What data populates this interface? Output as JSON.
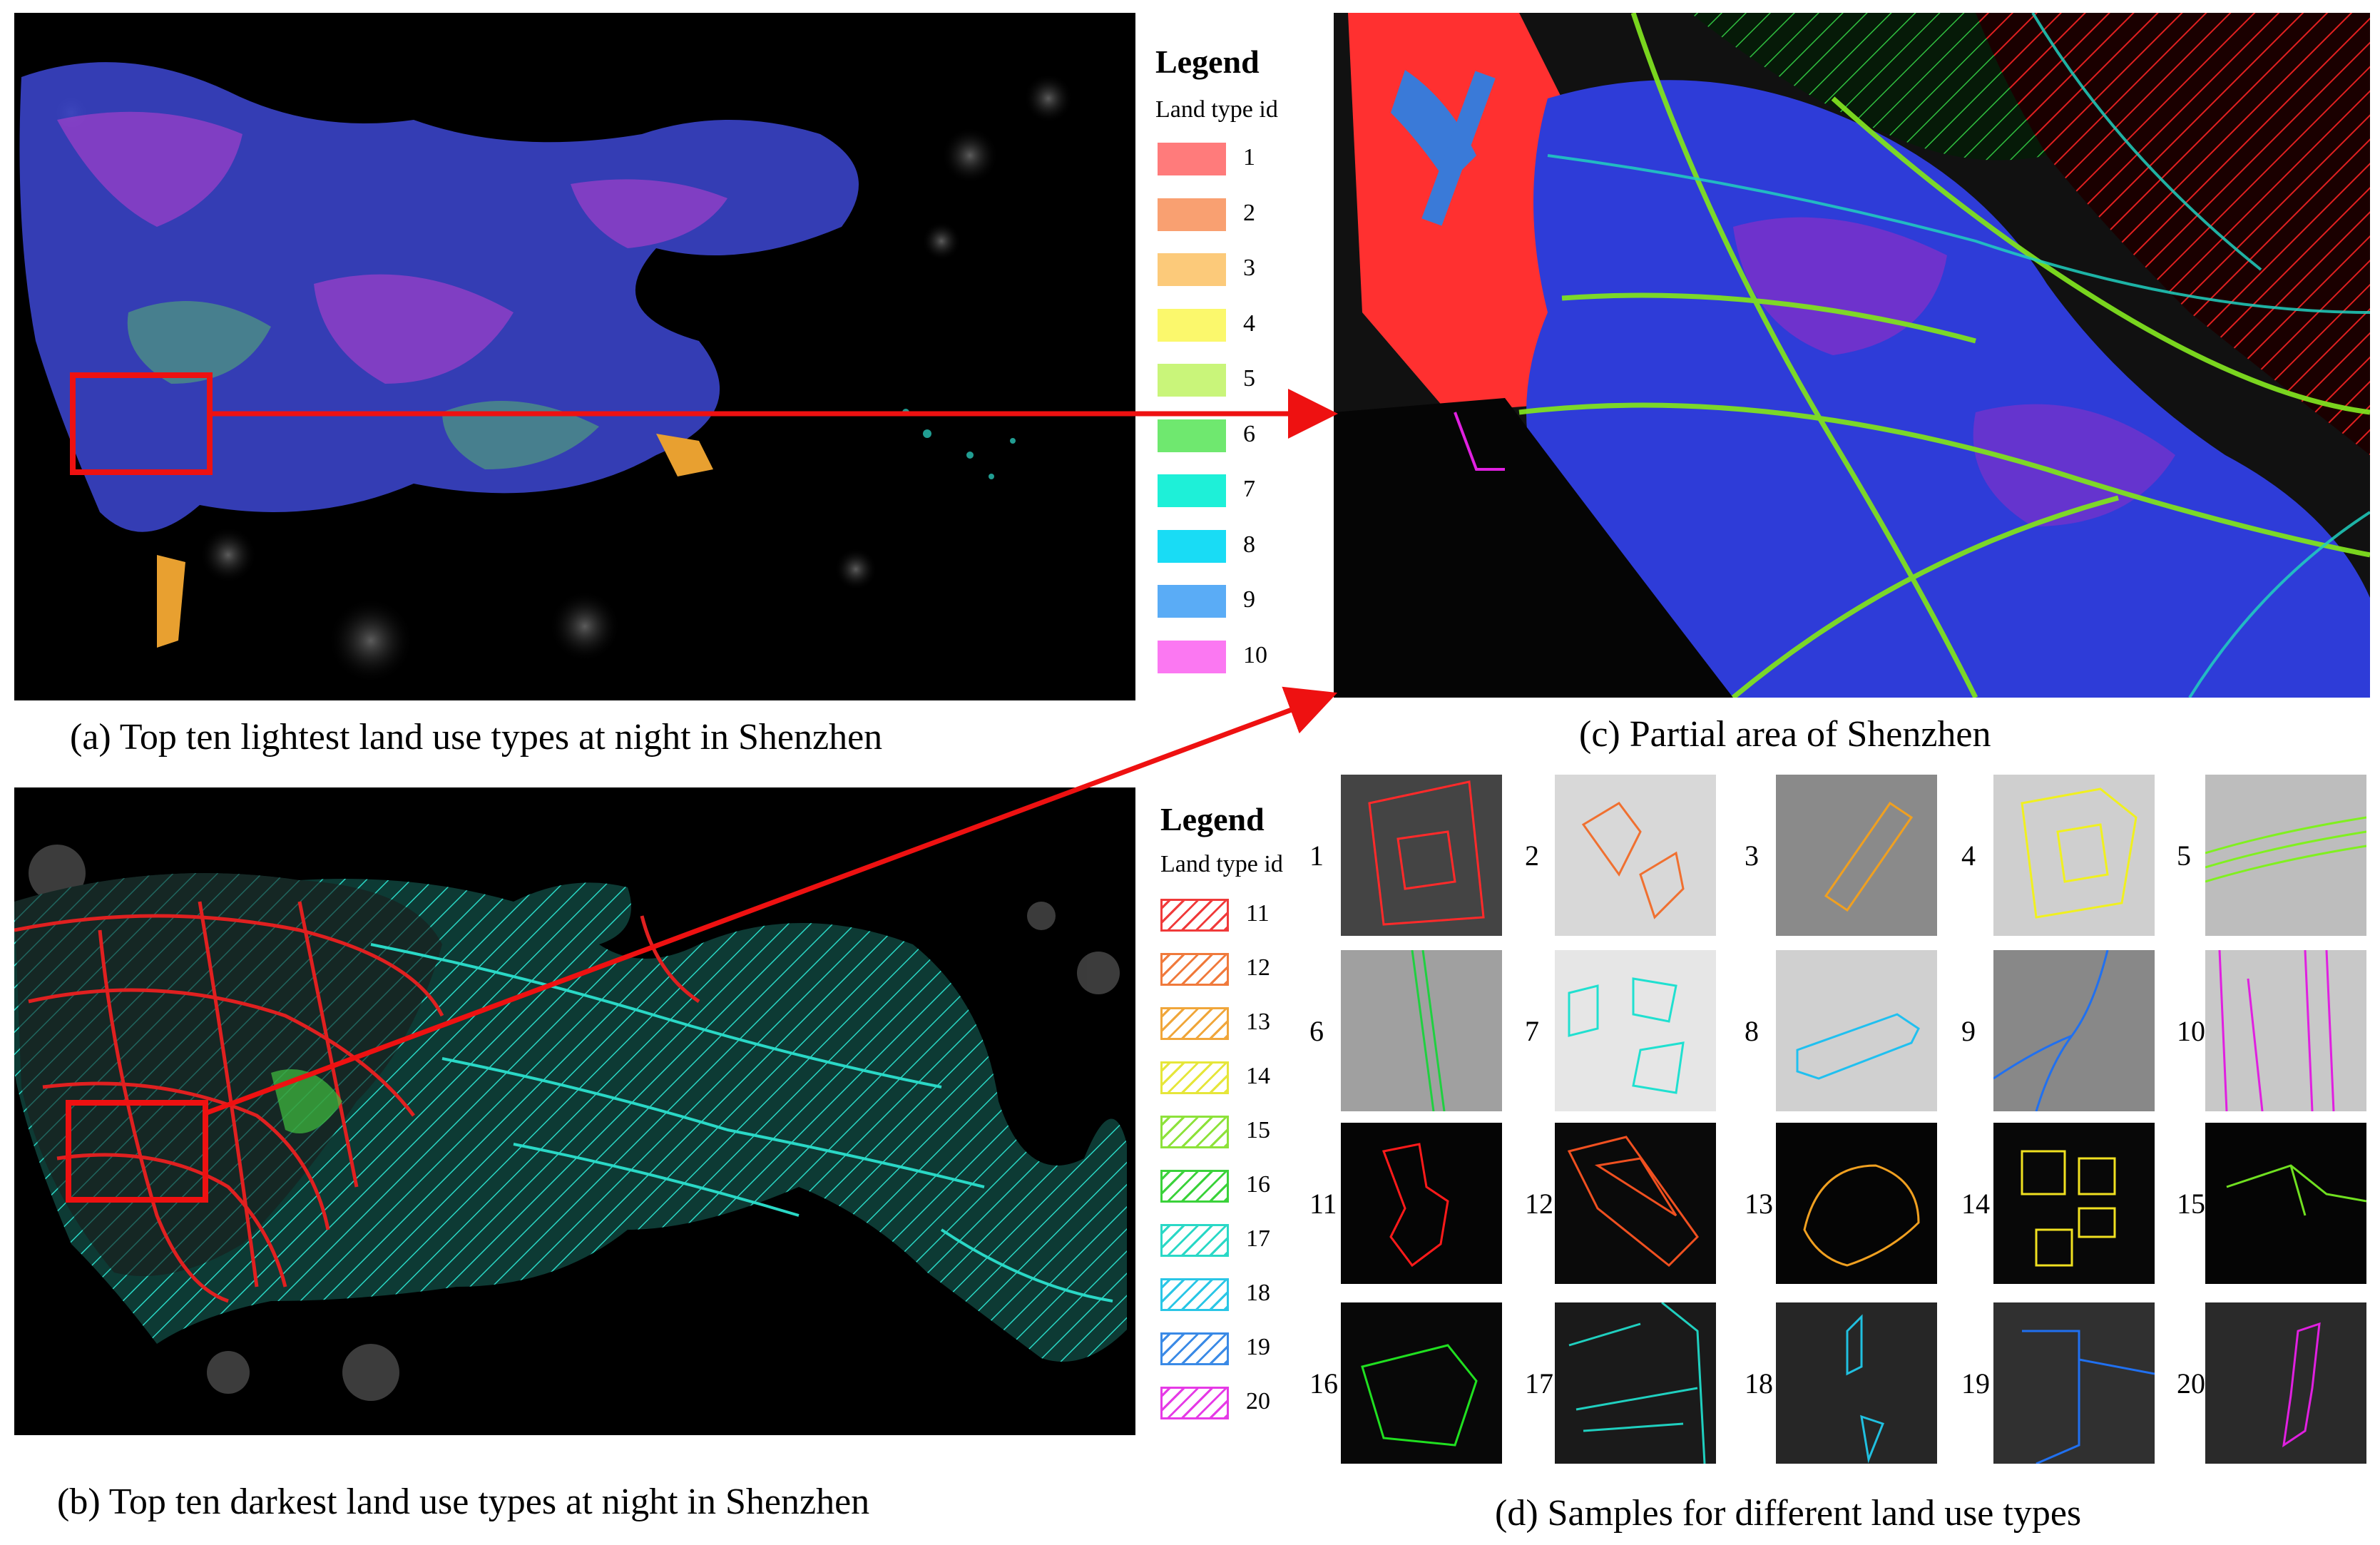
{
  "captions": {
    "a": "(a) Top ten lightest land use types at night in Shenzhen",
    "b": "(b) Top ten darkest land use types at night in Shenzhen",
    "c": "(c) Partial area of Shenzhen",
    "d": "(d) Samples for different land use types"
  },
  "legend_top": {
    "title": "Legend",
    "subtitle": "Land type id",
    "items": [
      {
        "id": "1",
        "color": "#ff7b7b"
      },
      {
        "id": "2",
        "color": "#f9a071"
      },
      {
        "id": "3",
        "color": "#fcca7a"
      },
      {
        "id": "4",
        "color": "#fbf86c"
      },
      {
        "id": "5",
        "color": "#c9f57a"
      },
      {
        "id": "6",
        "color": "#6fe86f"
      },
      {
        "id": "7",
        "color": "#1ef0d8"
      },
      {
        "id": "8",
        "color": "#19dcf5"
      },
      {
        "id": "9",
        "color": "#5aacf6"
      },
      {
        "id": "10",
        "color": "#fb78f2"
      }
    ]
  },
  "legend_bottom": {
    "title": "Legend",
    "subtitle": "Land type id",
    "items": [
      {
        "id": "11",
        "color": "#f03a3a"
      },
      {
        "id": "12",
        "color": "#f07a3c"
      },
      {
        "id": "13",
        "color": "#f0a63a"
      },
      {
        "id": "14",
        "color": "#e6e63a"
      },
      {
        "id": "15",
        "color": "#8de23a"
      },
      {
        "id": "16",
        "color": "#3ad23a"
      },
      {
        "id": "17",
        "color": "#2ad8c6"
      },
      {
        "id": "18",
        "color": "#2ac6e6"
      },
      {
        "id": "19",
        "color": "#3a8ae6"
      },
      {
        "id": "20",
        "color": "#e63ae6"
      }
    ]
  },
  "samples": [
    {
      "n": "1",
      "color": "#ff2a2a"
    },
    {
      "n": "2",
      "color": "#f07030"
    },
    {
      "n": "3",
      "color": "#f0a020"
    },
    {
      "n": "4",
      "color": "#f0f020"
    },
    {
      "n": "5",
      "color": "#80f020"
    },
    {
      "n": "6",
      "color": "#20d040"
    },
    {
      "n": "7",
      "color": "#20e0d0"
    },
    {
      "n": "8",
      "color": "#20c0f0"
    },
    {
      "n": "9",
      "color": "#2070f0"
    },
    {
      "n": "10",
      "color": "#e020e0"
    },
    {
      "n": "11",
      "color": "#ff1a1a"
    },
    {
      "n": "12",
      "color": "#f05020"
    },
    {
      "n": "13",
      "color": "#f0a020"
    },
    {
      "n": "14",
      "color": "#f0e020"
    },
    {
      "n": "15",
      "color": "#70e020"
    },
    {
      "n": "16",
      "color": "#20e020"
    },
    {
      "n": "17",
      "color": "#20d0c0"
    },
    {
      "n": "18",
      "color": "#20c0e0"
    },
    {
      "n": "19",
      "color": "#2070f0"
    },
    {
      "n": "20",
      "color": "#e020e0"
    }
  ],
  "colors": {
    "arrow": "#ee1111",
    "highlight": "#ee1111",
    "map_bg": "#000000"
  }
}
